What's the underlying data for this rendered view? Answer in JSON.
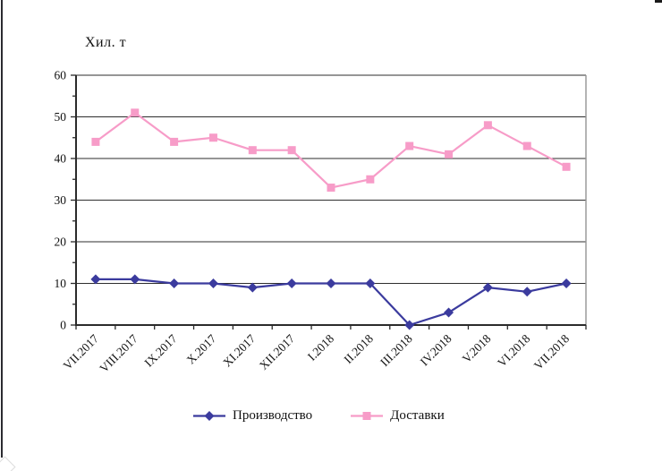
{
  "chart_data": {
    "type": "line",
    "title": "",
    "ylabel": "Хил. т",
    "xlabel": "",
    "categories": [
      "VII.2017",
      "VIII.2017",
      "IX.2017",
      "X.2017",
      "XI.2017",
      "XII.2017",
      "I.2018",
      "II.2018",
      "III.2018",
      "IV.2018",
      "V.2018",
      "VI.2018",
      "VII.2018"
    ],
    "series": [
      {
        "name": "Производство",
        "marker": "diamond",
        "color": "#3b3b9e",
        "values": [
          11,
          11,
          10,
          10,
          9,
          10,
          10,
          10,
          0,
          3,
          9,
          8,
          10
        ]
      },
      {
        "name": "Доставки",
        "marker": "square",
        "color": "#f79cc8",
        "values": [
          44,
          51,
          44,
          45,
          42,
          42,
          33,
          35,
          43,
          41,
          48,
          43,
          38
        ]
      }
    ],
    "ylim": [
      0,
      60
    ],
    "yticks": [
      0,
      10,
      20,
      30,
      40,
      50,
      60
    ],
    "ytick_minor_step": 5,
    "grid": "horizontal",
    "legend_position": "bottom",
    "colors": {
      "gridline": "#2e2e2e",
      "axis": "#2b2b2b",
      "plot_right_border": "#959595",
      "text": "#111111"
    }
  }
}
